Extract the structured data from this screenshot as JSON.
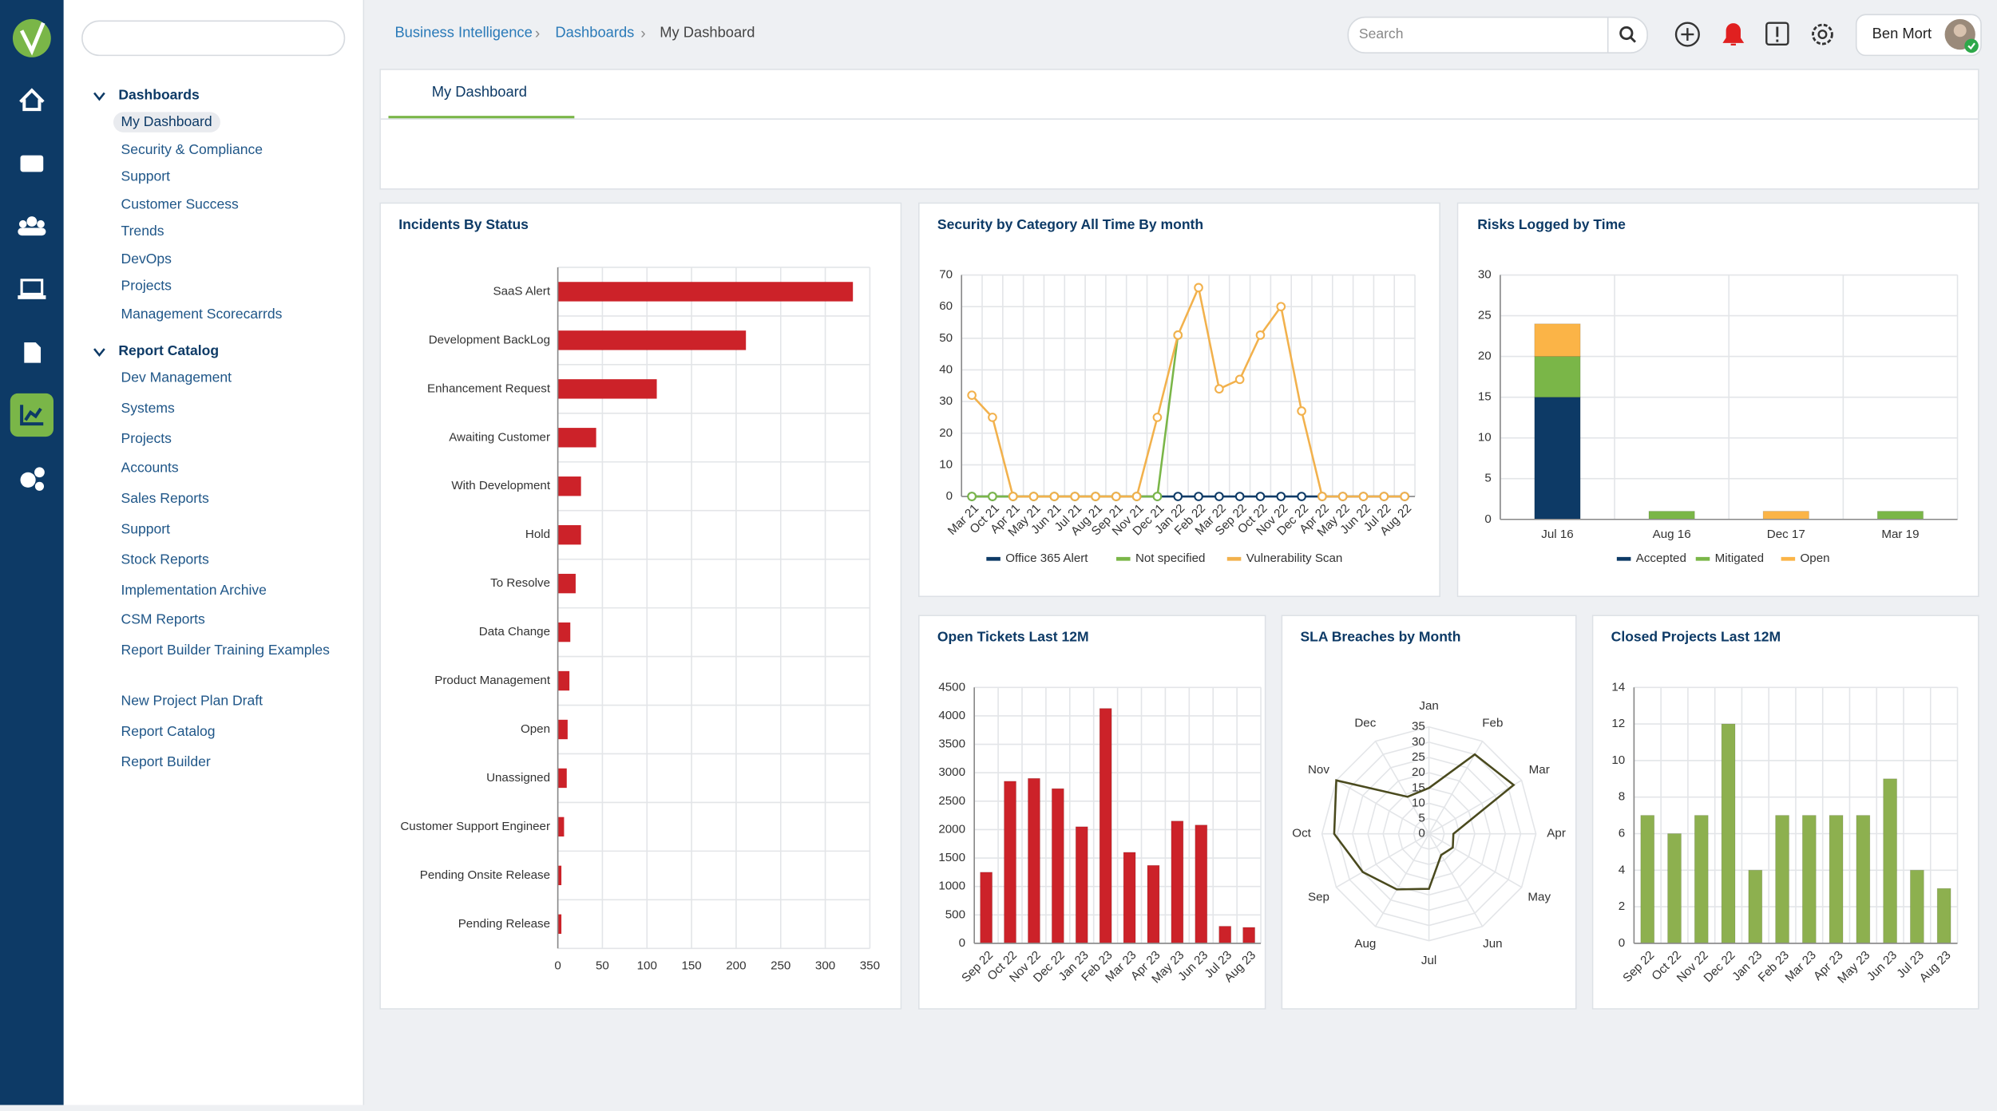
{
  "header": {
    "breadcrumb": [
      "Business Intelligence",
      "Dashboards",
      "My Dashboard"
    ],
    "search": "Search",
    "user": "Ben Mort",
    "tab": "My Dashboard"
  },
  "nav": {
    "sections": [
      {
        "title": "Dashboards",
        "items": [
          "My Dashboard",
          "Security & Compliance",
          "Support",
          "Customer Success",
          "Trends",
          "DevOps",
          "Projects",
          "Management Scorecarrds"
        ]
      },
      {
        "title": "Report Catalog",
        "items": [
          "Dev Management",
          "Systems",
          "Projects",
          "Accounts",
          "Sales Reports",
          "Support",
          "Stock Reports",
          "Implementation Archive",
          "CSM Reports",
          "Report Builder Training Examples"
        ]
      }
    ],
    "links": [
      "New Project Plan Draft",
      "Report Catalog",
      "Report Builder"
    ]
  },
  "chart_data": [
    {
      "type": "bar",
      "horizontal": true,
      "title": "Incidents By Status",
      "categories": [
        "SaaS Alert",
        "Development BackLog",
        "Enhancement Request",
        "Awaiting Customer",
        "With Development",
        "Hold",
        "To Resolve",
        "Data Change",
        "Product Management",
        "Open",
        "Unassigned",
        "Customer Support Engineer",
        "Pending Onsite Release",
        "Pending Release"
      ],
      "values": [
        331,
        211,
        111,
        43,
        26,
        26,
        20,
        14,
        13,
        11,
        10,
        7,
        4,
        4
      ],
      "color": "#cc2229",
      "xlim": [
        0,
        350
      ],
      "xticks": [
        0,
        50,
        100,
        150,
        200,
        250,
        300,
        350
      ],
      "grid": true
    },
    {
      "type": "line",
      "title": "Security by Category All Time By month",
      "categories": [
        "Mar 21",
        "Oct 21",
        "Apr 21",
        "May 21",
        "Jun 21",
        "Jul 21",
        "Aug 21",
        "Sep 21",
        "Nov 21",
        "Dec 21",
        "Jan 22",
        "Feb 22",
        "Mar 22",
        "Sep 22",
        "Oct 22",
        "Nov 22",
        "Dec 22",
        "Apr 22",
        "May 22",
        "Jun 22",
        "Jul 22",
        "Aug 22"
      ],
      "series": [
        {
          "name": "Office 365 Alert",
          "color": "#0d3a66",
          "values": [
            0,
            0,
            0,
            0,
            0,
            0,
            0,
            0,
            0,
            0,
            0,
            0,
            0,
            0,
            0,
            0,
            0,
            0,
            0,
            0,
            0,
            0
          ]
        },
        {
          "name": "Not specified",
          "color": "#7ab648",
          "values": [
            0,
            0,
            0,
            0,
            0,
            0,
            0,
            0,
            0,
            0,
            51,
            null,
            null,
            null,
            null,
            null,
            null,
            null,
            null,
            null,
            null,
            null
          ]
        },
        {
          "name": "Vulnerability Scan",
          "color": "#f2b14c",
          "values": [
            32,
            25,
            0,
            0,
            0,
            0,
            0,
            0,
            0,
            25,
            51,
            66,
            34,
            37,
            51,
            60,
            27,
            0,
            0,
            0,
            0,
            0
          ]
        }
      ],
      "ylim": [
        0,
        70
      ],
      "yticks": [
        0,
        10,
        20,
        30,
        40,
        50,
        60,
        70
      ],
      "grid": true
    },
    {
      "type": "bar",
      "stacked": true,
      "title": "Risks Logged by Time",
      "categories": [
        "Jul 16",
        "Aug 16",
        "Dec 17",
        "Mar 19"
      ],
      "series": [
        {
          "name": "Accepted",
          "color": "#0d3a66",
          "values": [
            15,
            0,
            0,
            0
          ]
        },
        {
          "name": "Mitigated",
          "color": "#7ab648",
          "values": [
            5,
            1,
            0,
            1
          ]
        },
        {
          "name": "Open",
          "color": "#fbb447",
          "values": [
            4,
            0,
            1,
            0
          ]
        }
      ],
      "ylim": [
        0,
        30
      ],
      "yticks": [
        0,
        5,
        10,
        15,
        20,
        25,
        30
      ],
      "grid": true
    },
    {
      "type": "bar",
      "title": "Open Tickets Last 12M",
      "categories": [
        "Sep 22",
        "Oct 22",
        "Nov 22",
        "Dec 22",
        "Jan 23",
        "Feb 23",
        "Mar 23",
        "Apr 23",
        "May 23",
        "Jun 23",
        "Jul 23",
        "Aug 23"
      ],
      "values": [
        1250,
        2850,
        2900,
        2720,
        2050,
        4130,
        1600,
        1370,
        2150,
        2080,
        300,
        280
      ],
      "color": "#cc2229",
      "ylim": [
        0,
        4500
      ],
      "yticks": [
        0,
        500,
        1000,
        1500,
        2000,
        2500,
        3000,
        3500,
        4000,
        4500
      ],
      "grid": true
    },
    {
      "type": "radar",
      "title": "SLA Breaches by Month",
      "categories": [
        "Jan",
        "Feb",
        "Mar",
        "Apr",
        "May",
        "Jun",
        "Jul",
        "Aug",
        "Sep",
        "Oct",
        "Nov",
        "Dec"
      ],
      "values": [
        15,
        30,
        32,
        8,
        9,
        8,
        18,
        21,
        25,
        31,
        35,
        14
      ],
      "color": "#4a4a1e",
      "rlim": [
        0,
        35
      ],
      "rticks": [
        0,
        5,
        10,
        15,
        20,
        25,
        30,
        35
      ],
      "grid": true
    },
    {
      "type": "bar",
      "title": "Closed Projects Last 12M",
      "categories": [
        "Sep 22",
        "Oct 22",
        "Nov 22",
        "Dec 22",
        "Jan 23",
        "Feb 23",
        "Mar 23",
        "Apr 23",
        "May 23",
        "Jun 23",
        "Jul 23",
        "Aug 23"
      ],
      "values": [
        7,
        6,
        7,
        12,
        4,
        7,
        7,
        7,
        7,
        9,
        4,
        3
      ],
      "color": "#8db04f",
      "ylim": [
        0,
        14
      ],
      "yticks": [
        0,
        2,
        4,
        6,
        8,
        10,
        12,
        14
      ],
      "grid": true
    }
  ]
}
